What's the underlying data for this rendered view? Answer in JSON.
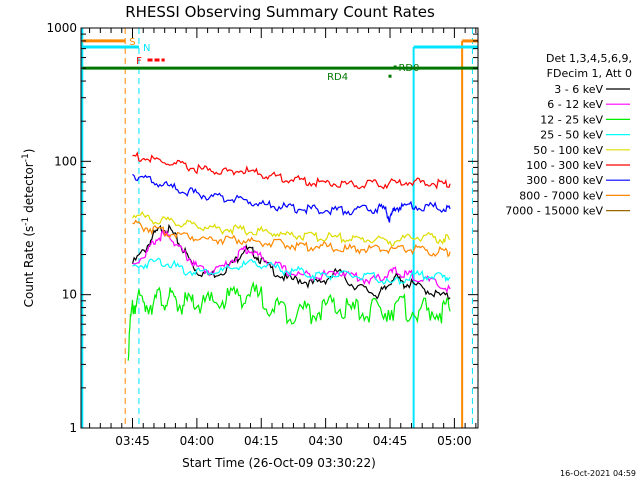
{
  "chart_data": {
    "type": "line",
    "title": "RHESSI Observing Summary Count Rates",
    "xlabel": "Start Time (26-Oct-09 03:30:22)",
    "ylabel_main": "Count Rate (s",
    "ylabel_sup1": "-1",
    "ylabel_mid": " detector",
    "ylabel_sup2": "-1",
    "ylabel_end": ")",
    "yscale": "log",
    "ylim": [
      1,
      1000
    ],
    "xlim_minutes": [
      3.0,
      95.5
    ],
    "x_ticks": [
      {
        "min": 15,
        "label": "03:45"
      },
      {
        "min": 30,
        "label": "04:00"
      },
      {
        "min": 45,
        "label": "04:15"
      },
      {
        "min": 60,
        "label": "04:30"
      },
      {
        "min": 75,
        "label": "04:45"
      },
      {
        "min": 90,
        "label": "05:00"
      }
    ],
    "y_ticks": [
      {
        "value": 1,
        "label": "1"
      },
      {
        "value": 10,
        "label": "10"
      },
      {
        "value": 100,
        "label": "100"
      },
      {
        "value": 1000,
        "label": "1000"
      }
    ],
    "legend": {
      "header1": "Det 1,3,4,5,6,9,",
      "header2": "FDecim 1, Att 0",
      "placement": "right"
    },
    "series": [
      {
        "name": "3 - 6 keV",
        "color": "#000000",
        "x": [
          15,
          18,
          20,
          22,
          24,
          26,
          28,
          30,
          33,
          36,
          39,
          41,
          43,
          45,
          48,
          51,
          54,
          57,
          60,
          63,
          66,
          69,
          72,
          74,
          76,
          78,
          80,
          83,
          86,
          89
        ],
        "values": [
          17,
          22,
          28,
          32,
          30,
          24,
          19,
          15,
          14,
          15,
          18,
          22,
          21,
          18,
          15,
          13,
          13,
          12,
          13,
          15,
          12,
          11,
          10,
          11,
          14,
          12,
          12,
          11,
          10,
          9.5
        ]
      },
      {
        "name": "6 - 12 keV",
        "color": "#ff00ff",
        "x": [
          15,
          18,
          20,
          22,
          24,
          26,
          28,
          30,
          33,
          36,
          39,
          41,
          43,
          45,
          48,
          51,
          54,
          57,
          60,
          63,
          66,
          69,
          72,
          74,
          76,
          78,
          80,
          83,
          86,
          89
        ],
        "values": [
          17,
          20,
          25,
          28,
          27,
          22,
          19,
          16,
          15,
          16,
          19,
          22,
          21,
          19,
          17,
          15,
          14,
          14,
          14,
          15,
          14,
          13,
          13,
          14,
          15,
          14,
          14,
          13,
          12,
          11
        ]
      },
      {
        "name": "12 - 25 keV",
        "color": "#00ee00",
        "x": [
          14,
          15,
          16,
          18,
          20,
          22,
          24,
          26,
          28,
          30,
          33,
          36,
          39,
          42,
          45,
          48,
          51,
          54,
          57,
          60,
          63,
          66,
          69,
          72,
          75,
          78,
          81,
          84,
          87,
          89
        ],
        "values": [
          4,
          8,
          9,
          8.5,
          9,
          9.5,
          9,
          8.5,
          8.5,
          8.5,
          8.5,
          9,
          10,
          10,
          9.5,
          8,
          7.5,
          7.5,
          7.5,
          8,
          8,
          7.5,
          7.5,
          7.5,
          8,
          8,
          7.5,
          7.5,
          7.5,
          7.5
        ]
      },
      {
        "name": "25 - 50 keV",
        "color": "#00ffff",
        "x": [
          15,
          18,
          21,
          24,
          27,
          30,
          33,
          36,
          39,
          42,
          45,
          48,
          51,
          54,
          57,
          60,
          63,
          66,
          69,
          72,
          75,
          78,
          81,
          84,
          87,
          89
        ],
        "values": [
          16,
          17,
          18,
          17,
          15,
          15,
          15,
          15,
          16,
          17,
          17,
          16,
          15,
          15,
          14,
          14,
          14,
          14,
          13.5,
          13.5,
          12,
          13,
          14,
          14,
          13.5,
          13.5
        ]
      },
      {
        "name": "50 - 100 keV",
        "color": "#dddd00",
        "x": [
          15,
          18,
          21,
          24,
          27,
          30,
          33,
          36,
          39,
          42,
          45,
          48,
          51,
          54,
          57,
          60,
          63,
          66,
          69,
          72,
          75,
          78,
          81,
          84,
          87,
          89
        ],
        "values": [
          40,
          38,
          36,
          35,
          34,
          33,
          32,
          31,
          31,
          30,
          30,
          29,
          28,
          28,
          27,
          27,
          27,
          26,
          26,
          26,
          25,
          26,
          27,
          27,
          26,
          26
        ]
      },
      {
        "name": "100 - 300 keV",
        "color": "#ff0000",
        "x": [
          15,
          18,
          21,
          24,
          27,
          30,
          33,
          36,
          39,
          42,
          45,
          48,
          51,
          54,
          57,
          60,
          63,
          66,
          69,
          72,
          75,
          78,
          81,
          84,
          87,
          89
        ],
        "values": [
          110,
          105,
          100,
          96,
          92,
          88,
          85,
          84,
          85,
          84,
          80,
          77,
          74,
          72,
          70,
          69,
          68,
          67,
          67,
          67,
          68,
          70,
          70,
          69,
          68,
          68
        ]
      },
      {
        "name": "300 - 800 keV",
        "color": "#0000ff",
        "x": [
          15,
          18,
          21,
          24,
          27,
          30,
          33,
          36,
          39,
          42,
          45,
          48,
          51,
          54,
          57,
          60,
          63,
          66,
          69,
          72,
          74,
          75,
          76,
          78,
          81,
          84,
          87,
          89
        ],
        "values": [
          80,
          74,
          68,
          64,
          60,
          57,
          54,
          53,
          52,
          50,
          48,
          46,
          45,
          44,
          44,
          43,
          43,
          43,
          44,
          44,
          44,
          36,
          45,
          46,
          46,
          46,
          45,
          44
        ]
      },
      {
        "name": "800 - 7000 keV",
        "color": "#ff8800",
        "x": [
          15,
          18,
          21,
          24,
          27,
          30,
          33,
          36,
          39,
          42,
          45,
          48,
          51,
          54,
          57,
          60,
          63,
          66,
          69,
          72,
          75,
          78,
          81,
          84,
          87,
          89
        ],
        "values": [
          34,
          32,
          30,
          29,
          28,
          27,
          26,
          26,
          26,
          25,
          25,
          24,
          24,
          23,
          23,
          23,
          22,
          22,
          22,
          22,
          22,
          22,
          22,
          21,
          21,
          21
        ]
      },
      {
        "name": "7000 - 15000 keV",
        "color": "#996600",
        "x": [],
        "values": []
      }
    ],
    "annotations": [
      {
        "label": "S",
        "color": "#ff8800",
        "x_min": 13.3,
        "y": 800
      },
      {
        "label": "N",
        "color": "#00e5ff",
        "x_min": 16.5,
        "y": 720
      },
      {
        "label": "F",
        "color": "#ff0000",
        "x_min": 16.3,
        "y": 575
      },
      {
        "label": "RD0",
        "color": "#007700",
        "x_min": 76.5,
        "y": 510
      },
      {
        "label": "RD4",
        "color": "#007700",
        "x_min": 67.8,
        "y": 435
      }
    ],
    "timestamp": "16-Oct-2021 04:59"
  }
}
